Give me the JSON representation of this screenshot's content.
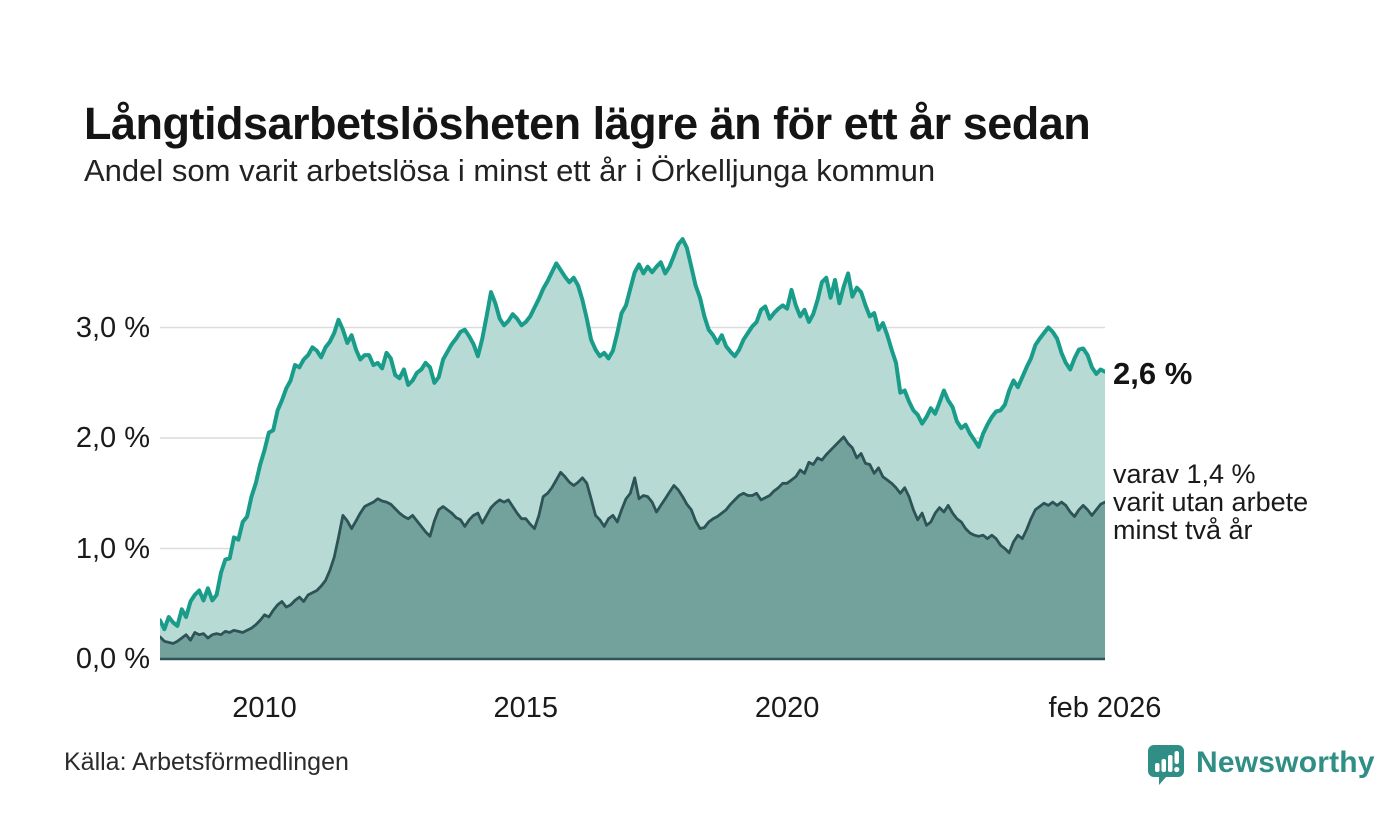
{
  "header": {
    "title": "Långtidsarbetslösheten lägre än för ett år sedan",
    "subtitle": "Andel som varit arbetslösa i minst ett år i Örkelljunga kommun"
  },
  "chart": {
    "y_ticks": [
      {
        "label": "3,0 %",
        "value": 3.0
      },
      {
        "label": "2,0 %",
        "value": 2.0
      },
      {
        "label": "1,0 %",
        "value": 1.0
      },
      {
        "label": "0,0 %",
        "value": 0.0
      }
    ],
    "x_ticks": [
      {
        "label": "2010",
        "month": 24
      },
      {
        "label": "2015",
        "month": 84
      },
      {
        "label": "2020",
        "month": 144
      },
      {
        "label": "feb 2026",
        "month": 217
      }
    ],
    "annotations": {
      "latest_total": "2,6 %",
      "latest_secondary_line1": "varav 1,4 %",
      "latest_secondary_line2": "varit utan arbete",
      "latest_secondary_line3": "minst två år"
    }
  },
  "footer": {
    "source": "Källa: Arbetsförmedlingen",
    "brand": "Newsworthy"
  },
  "colors": {
    "series1_line": "#1a9c8a",
    "series1_fill": "#b7dbd4",
    "series2_line": "#2d5357",
    "series2_fill": "#72a29b",
    "grid": "#dcdcdc",
    "baseline": "#2d5357",
    "brand_teal": "#2f8e85"
  },
  "chart_data": {
    "type": "area",
    "title": "Långtidsarbetslösheten lägre än för ett år sedan",
    "subtitle": "Andel som varit arbetslösa i minst ett år i Örkelljunga kommun",
    "unit": "%",
    "x_start": "2008-01",
    "x_end": "2026-02",
    "frequency": "monthly",
    "ylim": [
      0,
      3.9
    ],
    "gridlines": [
      1.0,
      2.0,
      3.0
    ],
    "legend_position": "right-edge-annotations",
    "series": [
      {
        "name": "Andel som varit arbetslösa i minst ett år",
        "latest_value": 2.6,
        "latest_label": "2,6 %",
        "values": [
          0.35,
          0.27,
          0.38,
          0.33,
          0.3,
          0.45,
          0.38,
          0.52,
          0.58,
          0.62,
          0.53,
          0.64,
          0.53,
          0.58,
          0.78,
          0.9,
          0.91,
          1.1,
          1.08,
          1.24,
          1.29,
          1.47,
          1.59,
          1.76,
          1.89,
          2.05,
          2.07,
          2.25,
          2.34,
          2.45,
          2.52,
          2.66,
          2.64,
          2.71,
          2.75,
          2.82,
          2.79,
          2.73,
          2.82,
          2.87,
          2.95,
          3.07,
          2.98,
          2.86,
          2.93,
          2.8,
          2.71,
          2.75,
          2.75,
          2.66,
          2.68,
          2.63,
          2.77,
          2.72,
          2.57,
          2.54,
          2.62,
          2.48,
          2.52,
          2.59,
          2.62,
          2.68,
          2.64,
          2.5,
          2.55,
          2.71,
          2.78,
          2.85,
          2.9,
          2.96,
          2.98,
          2.92,
          2.85,
          2.74,
          2.9,
          3.1,
          3.32,
          3.22,
          3.08,
          3.02,
          3.06,
          3.12,
          3.08,
          3.02,
          3.05,
          3.1,
          3.18,
          3.26,
          3.35,
          3.42,
          3.5,
          3.58,
          3.52,
          3.46,
          3.41,
          3.45,
          3.38,
          3.25,
          3.08,
          2.89,
          2.8,
          2.74,
          2.77,
          2.72,
          2.79,
          2.95,
          3.13,
          3.2,
          3.35,
          3.5,
          3.57,
          3.49,
          3.55,
          3.5,
          3.55,
          3.59,
          3.49,
          3.55,
          3.65,
          3.75,
          3.8,
          3.72,
          3.55,
          3.38,
          3.27,
          3.1,
          2.98,
          2.93,
          2.86,
          2.93,
          2.83,
          2.78,
          2.74,
          2.8,
          2.89,
          2.95,
          3.01,
          3.05,
          3.16,
          3.19,
          3.08,
          3.13,
          3.17,
          3.2,
          3.17,
          3.34,
          3.2,
          3.1,
          3.16,
          3.05,
          3.12,
          3.25,
          3.41,
          3.45,
          3.27,
          3.43,
          3.22,
          3.37,
          3.49,
          3.28,
          3.36,
          3.32,
          3.2,
          3.1,
          3.13,
          2.98,
          3.04,
          2.93,
          2.8,
          2.68,
          2.41,
          2.43,
          2.33,
          2.25,
          2.21,
          2.13,
          2.19,
          2.27,
          2.22,
          2.32,
          2.43,
          2.34,
          2.28,
          2.15,
          2.09,
          2.12,
          2.04,
          1.98,
          1.92,
          2.04,
          2.12,
          2.19,
          2.24,
          2.25,
          2.3,
          2.43,
          2.52,
          2.46,
          2.55,
          2.64,
          2.72,
          2.84,
          2.9,
          2.95,
          3.0,
          2.96,
          2.9,
          2.77,
          2.68,
          2.62,
          2.72,
          2.8,
          2.81,
          2.75,
          2.64,
          2.58,
          2.62,
          2.6
        ]
      },
      {
        "name": "varav utan arbete i minst två år",
        "latest_value": 1.4,
        "latest_label": "1,4 %",
        "values": [
          0.2,
          0.16,
          0.15,
          0.14,
          0.16,
          0.19,
          0.22,
          0.17,
          0.24,
          0.22,
          0.23,
          0.19,
          0.22,
          0.23,
          0.22,
          0.25,
          0.24,
          0.26,
          0.25,
          0.24,
          0.26,
          0.28,
          0.31,
          0.35,
          0.4,
          0.38,
          0.44,
          0.49,
          0.52,
          0.47,
          0.49,
          0.53,
          0.56,
          0.52,
          0.58,
          0.6,
          0.62,
          0.66,
          0.71,
          0.8,
          0.92,
          1.1,
          1.3,
          1.25,
          1.18,
          1.25,
          1.32,
          1.38,
          1.4,
          1.42,
          1.45,
          1.43,
          1.42,
          1.4,
          1.36,
          1.32,
          1.29,
          1.27,
          1.3,
          1.25,
          1.2,
          1.15,
          1.11,
          1.25,
          1.35,
          1.38,
          1.35,
          1.32,
          1.28,
          1.26,
          1.2,
          1.26,
          1.3,
          1.32,
          1.23,
          1.3,
          1.37,
          1.41,
          1.44,
          1.42,
          1.44,
          1.38,
          1.32,
          1.27,
          1.27,
          1.22,
          1.18,
          1.3,
          1.47,
          1.5,
          1.55,
          1.62,
          1.69,
          1.65,
          1.6,
          1.57,
          1.6,
          1.64,
          1.59,
          1.45,
          1.3,
          1.26,
          1.2,
          1.27,
          1.3,
          1.24,
          1.35,
          1.45,
          1.5,
          1.64,
          1.45,
          1.48,
          1.47,
          1.42,
          1.33,
          1.39,
          1.45,
          1.51,
          1.57,
          1.53,
          1.47,
          1.4,
          1.35,
          1.25,
          1.18,
          1.19,
          1.24,
          1.27,
          1.29,
          1.32,
          1.35,
          1.4,
          1.44,
          1.48,
          1.5,
          1.48,
          1.48,
          1.5,
          1.44,
          1.46,
          1.48,
          1.52,
          1.55,
          1.59,
          1.59,
          1.62,
          1.65,
          1.71,
          1.68,
          1.78,
          1.76,
          1.82,
          1.8,
          1.85,
          1.89,
          1.93,
          1.97,
          2.01,
          1.95,
          1.91,
          1.82,
          1.86,
          1.77,
          1.76,
          1.68,
          1.73,
          1.65,
          1.62,
          1.59,
          1.55,
          1.5,
          1.55,
          1.47,
          1.35,
          1.26,
          1.32,
          1.21,
          1.24,
          1.32,
          1.37,
          1.33,
          1.39,
          1.32,
          1.27,
          1.24,
          1.18,
          1.14,
          1.12,
          1.11,
          1.12,
          1.09,
          1.12,
          1.09,
          1.03,
          1.0,
          0.96,
          1.06,
          1.12,
          1.09,
          1.17,
          1.27,
          1.35,
          1.38,
          1.41,
          1.39,
          1.42,
          1.39,
          1.42,
          1.39,
          1.33,
          1.29,
          1.35,
          1.39,
          1.35,
          1.3,
          1.35,
          1.4,
          1.42
        ]
      }
    ]
  }
}
